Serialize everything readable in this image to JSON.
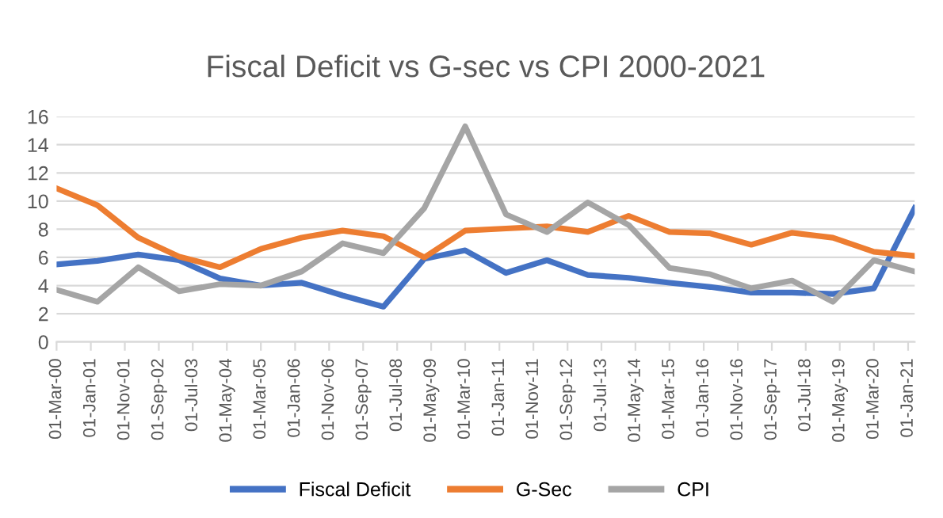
{
  "chart_data": {
    "type": "line",
    "title": "Fiscal Deficit vs G-sec vs CPI 2000-2021",
    "x": [
      "2000-03-01",
      "2001-03-01",
      "2002-03-01",
      "2003-03-01",
      "2004-03-01",
      "2005-03-01",
      "2006-03-01",
      "2007-03-01",
      "2008-03-01",
      "2009-03-01",
      "2010-03-01",
      "2011-03-01",
      "2012-03-01",
      "2013-03-01",
      "2014-03-01",
      "2015-03-01",
      "2016-03-01",
      "2017-03-01",
      "2018-03-01",
      "2019-03-01",
      "2020-03-01",
      "2021-03-01"
    ],
    "series": [
      {
        "name": "Fiscal Deficit",
        "color": "#4472c4",
        "values": [
          5.5,
          5.75,
          6.2,
          5.8,
          4.5,
          4.0,
          4.2,
          3.3,
          2.5,
          5.9,
          6.5,
          4.9,
          5.8,
          4.75,
          4.55,
          4.2,
          3.9,
          3.5,
          3.5,
          3.4,
          3.8,
          9.5
        ]
      },
      {
        "name": "G-Sec",
        "color": "#ed7d31",
        "values": [
          10.9,
          9.7,
          7.4,
          6.05,
          5.3,
          6.6,
          7.4,
          7.9,
          7.5,
          6.0,
          7.9,
          8.05,
          8.2,
          7.8,
          8.95,
          7.8,
          7.7,
          6.9,
          7.75,
          7.4,
          6.4,
          6.1
        ]
      },
      {
        "name": "CPI",
        "color": "#a5a5a5",
        "values": [
          3.7,
          2.85,
          5.3,
          3.6,
          4.1,
          4.0,
          5.0,
          7.0,
          6.3,
          9.5,
          15.3,
          9.05,
          7.8,
          9.9,
          8.3,
          5.25,
          4.8,
          3.8,
          4.35,
          2.85,
          5.8,
          5.0
        ]
      }
    ],
    "xlim": [
      "2000-03-01",
      "2021-03-01"
    ],
    "xticks": [
      {
        "value": "2000-03-01",
        "label": "01-Mar-00"
      },
      {
        "value": "2001-01-01",
        "label": "01-Jan-01"
      },
      {
        "value": "2001-11-01",
        "label": "01-Nov-01"
      },
      {
        "value": "2002-09-01",
        "label": "01-Sep-02"
      },
      {
        "value": "2003-07-01",
        "label": "01-Jul-03"
      },
      {
        "value": "2004-05-01",
        "label": "01-May-04"
      },
      {
        "value": "2005-03-01",
        "label": "01-Mar-05"
      },
      {
        "value": "2006-01-01",
        "label": "01-Jan-06"
      },
      {
        "value": "2006-11-01",
        "label": "01-Nov-06"
      },
      {
        "value": "2007-09-01",
        "label": "01-Sep-07"
      },
      {
        "value": "2008-07-01",
        "label": "01-Jul-08"
      },
      {
        "value": "2009-05-01",
        "label": "01-May-09"
      },
      {
        "value": "2010-03-01",
        "label": "01-Mar-10"
      },
      {
        "value": "2011-01-01",
        "label": "01-Jan-11"
      },
      {
        "value": "2011-11-01",
        "label": "01-Nov-11"
      },
      {
        "value": "2012-09-01",
        "label": "01-Sep-12"
      },
      {
        "value": "2013-07-01",
        "label": "01-Jul-13"
      },
      {
        "value": "2014-05-01",
        "label": "01-May-14"
      },
      {
        "value": "2015-03-01",
        "label": "01-Mar-15"
      },
      {
        "value": "2016-01-01",
        "label": "01-Jan-16"
      },
      {
        "value": "2016-11-01",
        "label": "01-Nov-16"
      },
      {
        "value": "2017-09-01",
        "label": "01-Sep-17"
      },
      {
        "value": "2018-07-01",
        "label": "01-Jul-18"
      },
      {
        "value": "2019-05-01",
        "label": "01-May-19"
      },
      {
        "value": "2020-03-01",
        "label": "01-Mar-20"
      },
      {
        "value": "2021-01-01",
        "label": "01-Jan-21"
      }
    ],
    "ylim": [
      0,
      16
    ],
    "yticks": [
      0,
      2,
      4,
      6,
      8,
      10,
      12,
      14,
      16
    ],
    "grid": "y",
    "legend": "bottom",
    "marker": "none",
    "line_style": "solid"
  }
}
